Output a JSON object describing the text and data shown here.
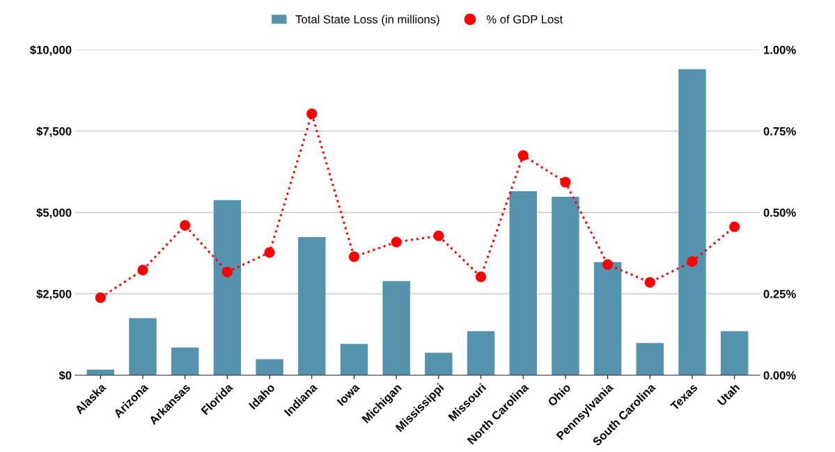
{
  "chart_data": {
    "type": "bar",
    "categories": [
      "Alaska",
      "Arizona",
      "Arkansas",
      "Florida",
      "Idaho",
      "Indiana",
      "Iowa",
      "Michigan",
      "Mississippi",
      "Missouri",
      "North Carolina",
      "Ohio",
      "Pennsylvania",
      "South Carolina",
      "Texas",
      "Utah"
    ],
    "series": [
      {
        "name": "Total State Loss (in millions)",
        "color": "#5592ad",
        "values": [
          170,
          1750,
          850,
          5380,
          490,
          4240,
          960,
          2890,
          690,
          1350,
          5650,
          5480,
          3470,
          990,
          9400,
          1350
        ]
      },
      {
        "name": "% of GDP Lost",
        "type": "line",
        "axis": "y2",
        "color": "#ff0000",
        "marker": "circle",
        "line_style": "dotted",
        "values": [
          0.238,
          0.323,
          0.46,
          0.317,
          0.377,
          0.803,
          0.364,
          0.409,
          0.428,
          0.302,
          0.675,
          0.593,
          0.34,
          0.285,
          0.349,
          0.456
        ]
      }
    ],
    "ylim": [
      0,
      10000
    ],
    "yticks": [
      {
        "value": 0,
        "label": "$0"
      },
      {
        "value": 2500,
        "label": "$2,500"
      },
      {
        "value": 5000,
        "label": "$5,000"
      },
      {
        "value": 7500,
        "label": "$7,500"
      },
      {
        "value": 10000,
        "label": "$10,000"
      }
    ],
    "y2lim": [
      0,
      1
    ],
    "y2ticks": [
      {
        "value": 0,
        "label": "0.00%"
      },
      {
        "value": 0.25,
        "label": "0.25%"
      },
      {
        "value": 0.5,
        "label": "0.50%"
      },
      {
        "value": 0.75,
        "label": "0.75%"
      },
      {
        "value": 1,
        "label": "1.00%"
      }
    ],
    "grid": "y",
    "legend": "top"
  }
}
